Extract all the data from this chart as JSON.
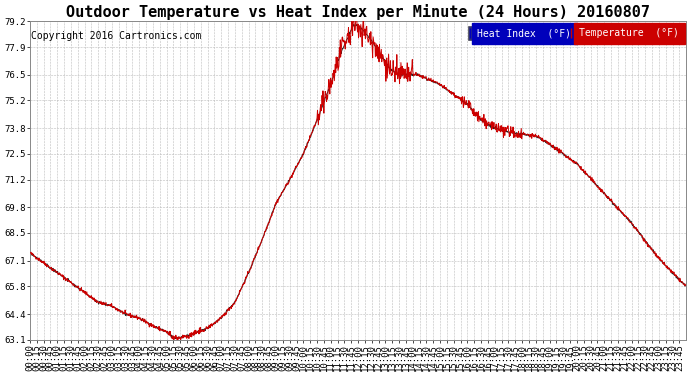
{
  "title": "Outdoor Temperature vs Heat Index per Minute (24 Hours) 20160807",
  "copyright": "Copyright 2016 Cartronics.com",
  "legend_label_heat": "Heat Index  (°F)",
  "legend_label_temp": "Temperature  (°F)",
  "legend_color_heat": "#0000bb",
  "legend_color_temp": "#cc0000",
  "line_color_heat": "#222222",
  "line_color_temp": "#cc0000",
  "background_color": "#ffffff",
  "grid_color": "#bbbbbb",
  "ylim": [
    63.1,
    79.2
  ],
  "yticks": [
    63.1,
    64.4,
    65.8,
    67.1,
    68.5,
    69.8,
    71.2,
    72.5,
    73.8,
    75.2,
    76.5,
    77.9,
    79.2
  ],
  "title_fontsize": 11,
  "copyright_fontsize": 7,
  "tick_fontsize": 6.5,
  "legend_fontsize": 7
}
